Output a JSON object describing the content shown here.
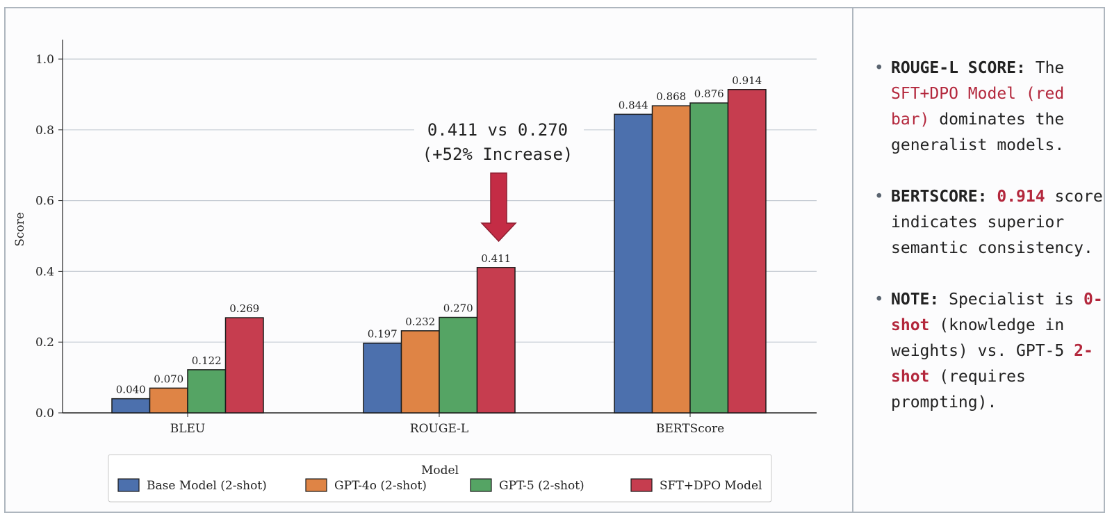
{
  "chart_data": {
    "type": "bar",
    "categories": [
      "BLEU",
      "ROUGE-L",
      "BERTScore"
    ],
    "series": [
      {
        "name": "Base Model (2-shot)",
        "color": "#4c70ad",
        "values": [
          0.04,
          0.197,
          0.844
        ],
        "labels": [
          "0.040",
          "0.197",
          "0.844"
        ]
      },
      {
        "name": "GPT-4o (2-shot)",
        "color": "#df8445",
        "values": [
          0.07,
          0.232,
          0.868
        ],
        "labels": [
          "0.070",
          "0.232",
          "0.868"
        ]
      },
      {
        "name": "GPT-5 (2-shot)",
        "color": "#55a464",
        "values": [
          0.122,
          0.27,
          0.876
        ],
        "labels": [
          "0.122",
          "0.270",
          "0.876"
        ]
      },
      {
        "name": "SFT+DPO Model",
        "color": "#c63d4f",
        "values": [
          0.269,
          0.411,
          0.914
        ],
        "labels": [
          "0.269",
          "0.411",
          "0.914"
        ]
      }
    ],
    "ylabel": "Score",
    "xlabel": "",
    "ylim": [
      0,
      1.05
    ],
    "yticks": [
      "0.0",
      "0.2",
      "0.4",
      "0.6",
      "0.8",
      "1.0"
    ],
    "grid": true,
    "legend_title": "Model",
    "legend_position": "bottom",
    "annotation": {
      "line1": "0.411 vs 0.270",
      "line2": "(+52% Increase)",
      "target_category": "ROUGE-L",
      "target_series": "SFT+DPO Model",
      "arrow_color": "#c42c45"
    }
  },
  "notes": [
    {
      "label": "ROUGE-L SCORE:",
      "text1": " The ",
      "highlight": "SFT+DPO Model (red bar)",
      "text2": " dominates the generalist models."
    },
    {
      "label": "BERTSCORE:",
      "text1": " ",
      "highlight": "0.914",
      "text2": " score indicates superior semantic consistency."
    },
    {
      "label": "NOTE:",
      "text1": " Specialist is ",
      "highlight": "0-shot",
      "text2": " (knowledge in weights) vs. GPT-5 ",
      "highlight2": "2-shot",
      "text3": " (requires prompting)."
    }
  ]
}
